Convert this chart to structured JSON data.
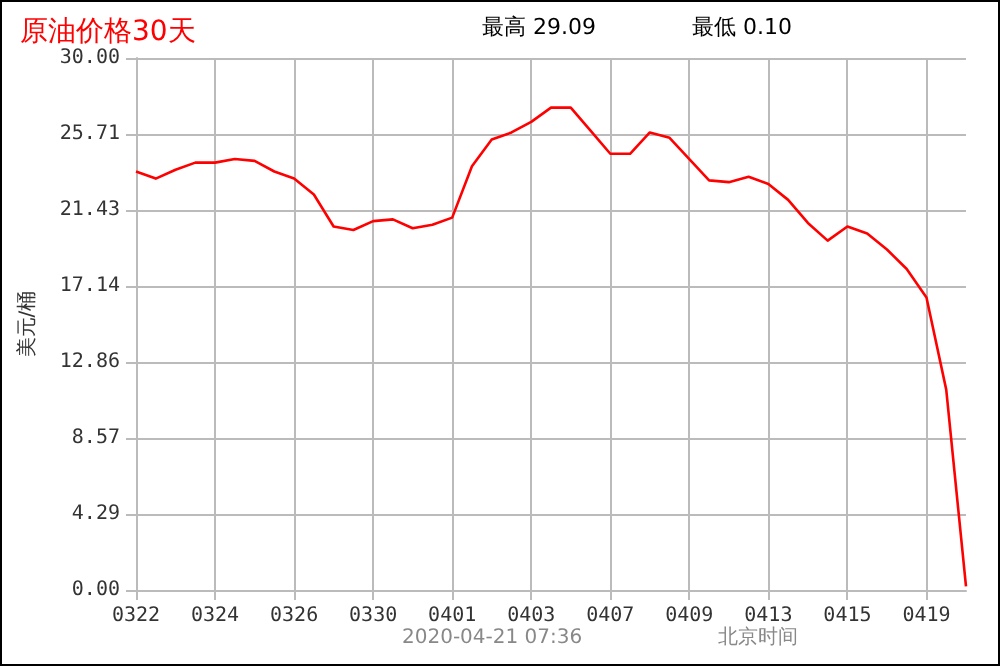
{
  "chart_data": {
    "type": "line",
    "title": "原油价格30天",
    "ylabel": "美元/桶",
    "annotations": [
      "最高 29.09",
      "最低 0.10",
      "2020-04-21 07:36",
      "北京时间"
    ],
    "categories": [
      "0322",
      null,
      null,
      null,
      "0324",
      null,
      null,
      null,
      "0326",
      null,
      null,
      null,
      "0330",
      null,
      null,
      null,
      "0401",
      null,
      null,
      null,
      "0403",
      null,
      null,
      null,
      "0407",
      null,
      null,
      null,
      "0409",
      null,
      null,
      null,
      "0413",
      null,
      null,
      null,
      "0415",
      null,
      null,
      null,
      "0419",
      null,
      null
    ],
    "series": [
      {
        "color": "#ff0000",
        "values": [
          23.6,
          23.2,
          23.7,
          24.1,
          24.1,
          24.3,
          24.2,
          23.6,
          23.2,
          22.3,
          20.5,
          20.3,
          20.8,
          20.9,
          20.4,
          20.6,
          21.0,
          23.9,
          25.4,
          25.8,
          26.4,
          27.2,
          27.2,
          25.9,
          24.6,
          24.6,
          25.8,
          25.5,
          24.3,
          23.1,
          23.0,
          23.3,
          22.9,
          22.0,
          20.7,
          19.7,
          20.5,
          20.1,
          19.2,
          18.1,
          16.5,
          11.3,
          0.2
        ]
      }
    ],
    "ylim": [
      0,
      30
    ],
    "yticks": [
      {
        "value": 0,
        "label": "0.00"
      },
      4.29,
      8.57,
      12.86,
      17.14,
      21.43,
      25.71,
      {
        "value": 30,
        "label": "30.00"
      }
    ],
    "grid": true,
    "marker": "none",
    "line_style": "solid"
  }
}
